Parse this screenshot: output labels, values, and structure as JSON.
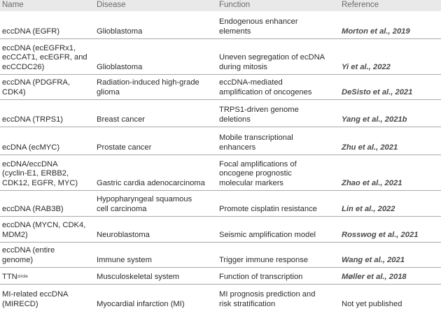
{
  "header": {
    "name": "Name",
    "disease": "Disease",
    "function": "Function",
    "reference": "Reference"
  },
  "rows": [
    {
      "name": "eccDNA (EGFR)",
      "disease": "Glioblastoma",
      "function": "Endogenous enhancer\nelements",
      "reference": "Morton et al., 2019"
    },
    {
      "name": "eccDNA (ecEGFRx1,\necCCAT1, ecEGFR, and\necCCDC26)",
      "disease": "Glioblastoma",
      "function": "Uneven segregation of ecDNA\nduring mitosis",
      "reference": "Yi et al., 2022"
    },
    {
      "name": "eccDNA (PDGFRA,\nCDK4)",
      "disease": "Radiation-induced high-grade\nglioma",
      "function": "eccDNA-mediated\namplification of oncogenes",
      "reference": "DeSisto et al., 2021"
    },
    {
      "name": "eccDNA (TRPS1)",
      "disease": "Breast cancer",
      "function": "TRPS1-driven genome\ndeletions",
      "reference": "Yang et al., 2021b"
    },
    {
      "name": "ecDNA (ecMYC)",
      "disease": "Prostate cancer",
      "function": "Mobile transcriptional\nenhancers",
      "reference": "Zhu et al., 2021"
    },
    {
      "name": "ecDNA/eccDNA\n(cyclin-E1, ERBB2,\nCDK12, EGFR, MYC)",
      "disease": "Gastric cardia adenocarcinoma",
      "function": "Focal amplifications of\noncogene prognostic\nmolecular markers",
      "reference": "Zhao et al., 2021"
    },
    {
      "name": "eccDNA (RAB3B)",
      "disease": "Hypopharyngeal squamous\ncell carcinoma",
      "function": "Promote cisplatin resistance",
      "reference": "Lin et al., 2022"
    },
    {
      "name": "eccDNA (MYCN, CDK4,\nMDM2)",
      "disease": "Neuroblastoma",
      "function": "Seismic amplification model",
      "reference": "Rosswog et al., 2021"
    },
    {
      "name": "eccDNA (entire\ngenome)",
      "disease": "Immune system",
      "function": "Trigger immune response",
      "reference": "Wang et al., 2021"
    },
    {
      "name": "TTN",
      "name_sup": "circle",
      "disease": "Musculoskeletal system",
      "function": "Function of transcription",
      "reference": "Møller et al., 2018"
    },
    {
      "name": "MI-related eccDNA\n(MIRECD)",
      "disease": "Myocardial infarction (MI)",
      "function": "MI prognosis prediction and\nrisk stratification",
      "reference": "Not yet published"
    }
  ]
}
